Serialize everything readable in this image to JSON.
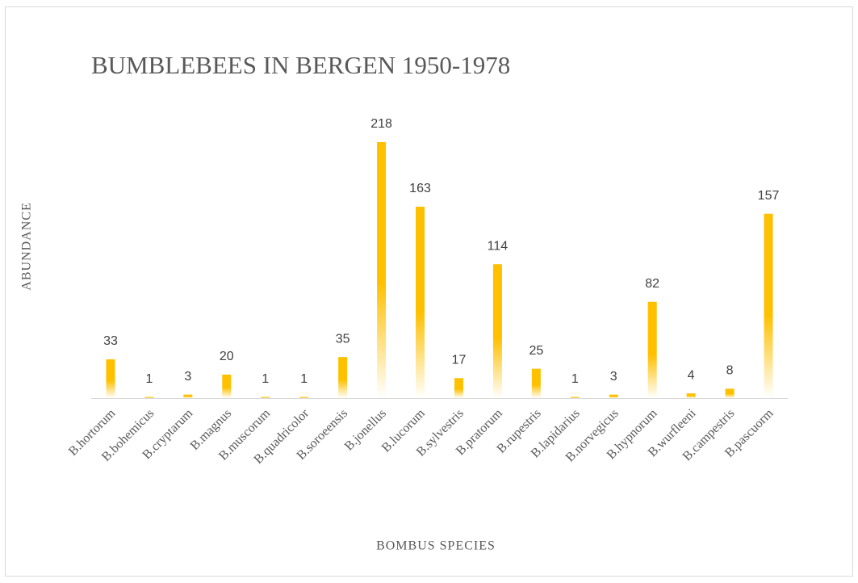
{
  "chart_data": {
    "type": "bar",
    "title": "BUMBLEBEES IN BERGEN 1950-1978",
    "x_label": "BOMBUS SPECIES",
    "y_label": "ABUNDANCE",
    "categories": [
      "B.hortorum",
      "B.bohemicus",
      "B.cryptarum",
      "B.magnus",
      "B.muscorum",
      "B.quadricolor",
      "B.soroeensis",
      "B.jonellus",
      "B.lucorum",
      "B.sylvestris",
      "B.pratorum",
      "B.rupestris",
      "B.lapidarius",
      "B.norvegicus",
      "B.hypnorum",
      "B.wurfleeni",
      "B.campestris",
      "B.pascuorm"
    ],
    "values": [
      33,
      1,
      3,
      20,
      1,
      1,
      35,
      218,
      163,
      17,
      114,
      25,
      1,
      3,
      82,
      4,
      8,
      157
    ],
    "color": "#ffc000"
  }
}
